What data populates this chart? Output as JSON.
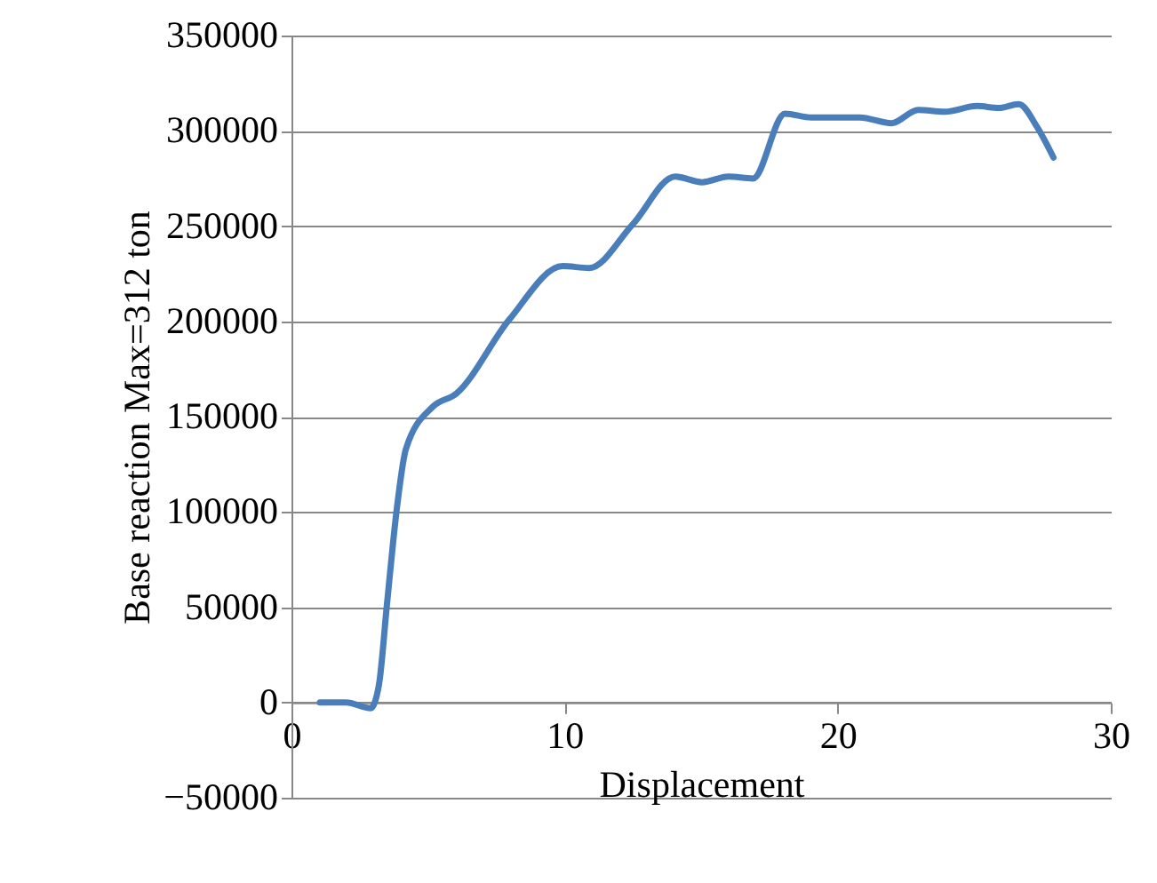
{
  "chart_data": {
    "type": "line",
    "xlabel": "Displacement",
    "ylabel": "Base reaction Max=312  ton",
    "x": [
      1.04,
      2.0,
      2.9,
      3.2,
      3.5,
      3.86,
      4.19,
      5.16,
      6.03,
      7.98,
      9.93,
      10.9,
      12.5,
      14.05,
      15.03,
      16.0,
      16.9,
      18.07,
      19.04,
      20.8,
      21.97,
      22.95,
      23.92,
      25.1,
      25.9,
      26.63,
      27.3,
      27.9
    ],
    "series": [
      {
        "color": "#4a7ebb",
        "values": [
          0,
          0,
          -3000,
          9000,
          52000,
          102000,
          133000,
          155000,
          162000,
          201000,
          229000,
          228000,
          251000,
          276000,
          273000,
          276000,
          275000,
          309000,
          307000,
          307000,
          304000,
          311000,
          310000,
          313000,
          312000,
          314000,
          302000,
          286000
        ]
      }
    ],
    "xlim": [
      0,
      30
    ],
    "xticks": [
      0,
      10,
      20,
      30
    ],
    "ylim": [
      -50000,
      350000
    ],
    "yticks": [
      -50000,
      0,
      50000,
      100000,
      150000,
      200000,
      250000,
      300000,
      350000
    ],
    "grid": "y",
    "legend": false,
    "marker": "none",
    "line_style": "solid"
  }
}
